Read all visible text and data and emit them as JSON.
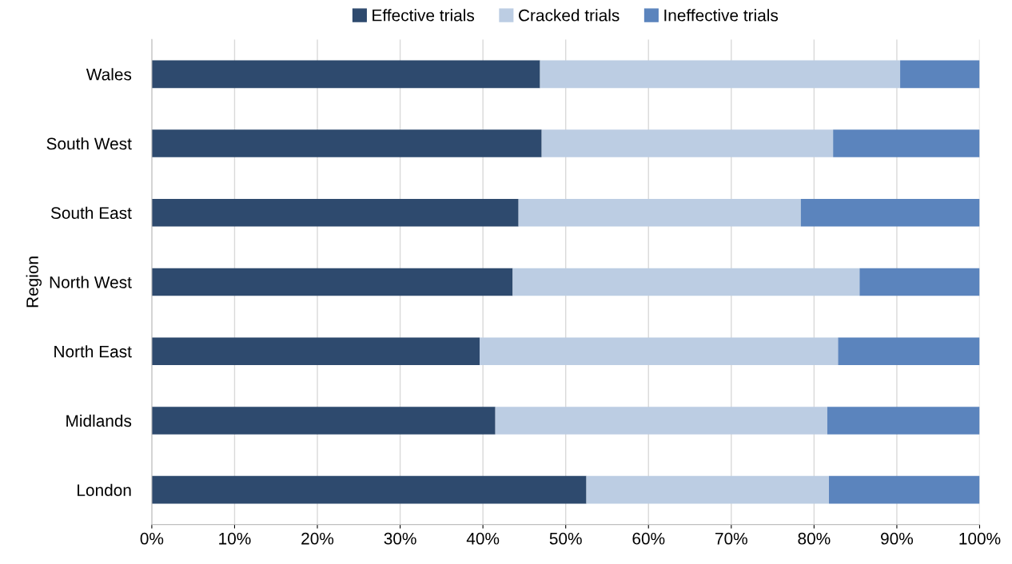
{
  "chart_data": {
    "type": "bar",
    "orientation": "horizontal",
    "stacked": true,
    "ylabel": "Region",
    "categories": [
      "Wales",
      "South West",
      "South East",
      "North West",
      "North East",
      "Midlands",
      "London"
    ],
    "series": [
      {
        "name": "Effective trials",
        "color": "#2e4a6e",
        "values": [
          46.9,
          47.1,
          44.3,
          43.6,
          39.6,
          41.5,
          52.5
        ]
      },
      {
        "name": "Cracked trials",
        "color": "#bccde3",
        "values": [
          43.5,
          35.2,
          34.1,
          41.9,
          43.3,
          40.1,
          29.3
        ]
      },
      {
        "name": "Ineffective trials",
        "color": "#5b84bd",
        "values": [
          9.6,
          17.7,
          21.6,
          14.5,
          17.1,
          18.4,
          18.2
        ]
      }
    ],
    "xlim": [
      0,
      100
    ],
    "xticks": [
      {
        "value": 0,
        "label": "0%"
      },
      {
        "value": 10,
        "label": "10%"
      },
      {
        "value": 20,
        "label": "20%"
      },
      {
        "value": 30,
        "label": "30%"
      },
      {
        "value": 40,
        "label": "40%"
      },
      {
        "value": 50,
        "label": "50%"
      },
      {
        "value": 60,
        "label": "60%"
      },
      {
        "value": 70,
        "label": "70%"
      },
      {
        "value": 80,
        "label": "80%"
      },
      {
        "value": 90,
        "label": "90%"
      },
      {
        "value": 100,
        "label": "100%"
      }
    ],
    "grid": "x",
    "legend": "top"
  }
}
